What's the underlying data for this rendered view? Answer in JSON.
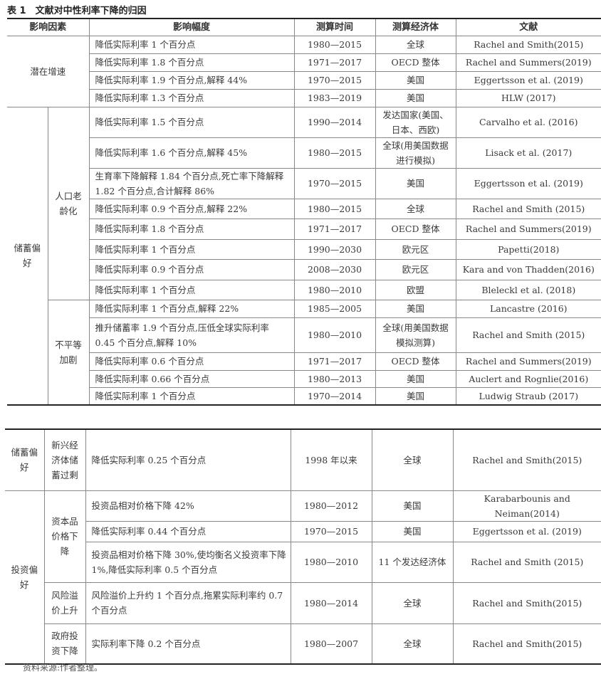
{
  "title": "表 1　文献对中性利率下降的归因",
  "headers": [
    "影响因素",
    "影响幅度",
    "测算时间",
    "测算经济体",
    "文献"
  ],
  "table1": {
    "groups": [
      {
        "label": "潜在增速",
        "rows": [
          [
            "降低实际利率 1 个百分点",
            "1980—2015",
            "全球",
            "Rachel and Smith(2015)"
          ],
          [
            "降低实际利率 1.8 个百分点",
            "1971—2017",
            "OECD 整体",
            "Rachel and Summers(2019)"
          ],
          [
            "降低实际利率 1.9 个百分点,解释 44%",
            "1970—2015",
            "美国",
            "Eggertsson et al. (2019)"
          ],
          [
            "降低实际利率 1.3 个百分点",
            "1983—2019",
            "美国",
            "HLW (2017)"
          ]
        ]
      },
      {
        "label": "储蓄偏好",
        "subgroups": [
          {
            "label": "人口老龄化",
            "rows": [
              [
                "降低实际利率 1.5 个百分点",
                "1990—2014",
                "发达国家(美国、日本、西欧)",
                "Carvalho et al. (2016)"
              ],
              [
                "降低实际利率 1.6 个百分点,解释 45%",
                "1980—2015",
                "全球(用美国数据进行模拟)",
                "Lisack et al. (2017)"
              ],
              [
                "生育率下降解释 1.84 个百分点,死亡率下降解释 1.82 个百分点,合计解释 86%",
                "1970—2015",
                "美国",
                "Eggertsson et al. (2019)"
              ],
              [
                "降低实际利率 0.9 个百分点,解释 22%",
                "1980—2015",
                "全球",
                "Rachel and Smith (2015)"
              ],
              [
                "降低实际利率 1.8 个百分点",
                "1971—2017",
                "OECD 整体",
                "Rachel and Summers(2019)"
              ],
              [
                "降低实际利率 1 个百分点",
                "1990—2030",
                "欧元区",
                "Papetti(2018)"
              ],
              [
                "降低实际利率 0.9 个百分点",
                "2008—2030",
                "欧元区",
                "Kara and von Thadden(2016)"
              ],
              [
                "降低实际利率 1 个百分点",
                "1980—2010",
                "欧盟",
                "Bleleckl et al. (2018)"
              ]
            ]
          },
          {
            "label": "不平等加剧",
            "rows": [
              [
                "降低实际利率 1 个百分点,解释 22%",
                "1985—2005",
                "美国",
                "Lancastre (2016)"
              ],
              [
                "推升储蓄率 1.9 个百分点,压低全球实际利率 0.45 个百分点,解释 10%",
                "1980—2010",
                "全球(用美国数据模拟测算)",
                "Rachel and Smith (2015)"
              ],
              [
                "降低实际利率 0.6 个百分点",
                "1971—2017",
                "OECD 整体",
                "Rachel and Summers(2019)"
              ],
              [
                "降低实际利率 0.66 个百分点",
                "1980—2013",
                "美国",
                "Auclert and Rognlie(2016)"
              ],
              [
                "降低实际利率 1 个百分点",
                "1970—2014",
                "美国",
                "Ludwig Straub (2017)"
              ]
            ]
          }
        ]
      }
    ]
  },
  "table2": {
    "groups": [
      {
        "label": "储蓄偏好",
        "subgroups": [
          {
            "label": "新兴经济体储蓄过剩",
            "rows": [
              [
                "降低实际利率 0.25 个百分点",
                "1998 年以来",
                "全球",
                "Rachel and Smith(2015)"
              ]
            ]
          }
        ]
      },
      {
        "label": "投资偏好",
        "subgroups": [
          {
            "label": "资本品价格下降",
            "rows": [
              [
                "投资品相对价格下降 42%",
                "1980—2012",
                "美国",
                "Karabarbounis and Neiman(2014)"
              ],
              [
                "降低实际利率 0.44 个百分点",
                "1970—2015",
                "美国",
                "Eggertsson et al. (2019)"
              ],
              [
                "投资品相对价格下降 30%,使均衡名义投资率下降 1%,降低实际利率 0.5 个百分点",
                "1980—2010",
                "11 个发达经济体",
                "Rachel and Smith (2015)"
              ]
            ]
          },
          {
            "label": "风险溢价上升",
            "rows": [
              [
                "风险溢价上升约 1 个百分点,拖累实际利率约 0.7 个百分点",
                "1980—2014",
                "全球",
                "Rachel and Smith(2015)"
              ]
            ]
          },
          {
            "label": "政府投资下降",
            "rows": [
              [
                "实际利率下降 0.2 个百分点",
                "1980—2007",
                "全球",
                "Rachel and Smith(2015)"
              ]
            ]
          }
        ]
      }
    ]
  },
  "footnote": "资料来源:作者整理。"
}
